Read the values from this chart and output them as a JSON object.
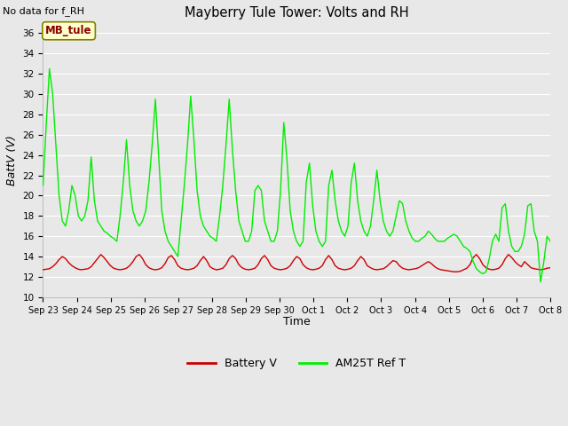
{
  "title": "Mayberry Tule Tower: Volts and RH",
  "no_data_label": "No data for f_RH",
  "ylabel": "BattV (V)",
  "xlabel": "Time",
  "legend_label_box": "MB_tule",
  "ylim": [
    10,
    37
  ],
  "yticks": [
    10,
    12,
    14,
    16,
    18,
    20,
    22,
    24,
    26,
    28,
    30,
    32,
    34,
    36
  ],
  "x_tick_labels": [
    "Sep 23",
    "Sep 24",
    "Sep 25",
    "Sep 26",
    "Sep 27",
    "Sep 28",
    "Sep 29",
    "Sep 30",
    "Oct 1",
    "Oct 2",
    "Oct 3",
    "Oct 4",
    "Oct 5",
    "Oct 6",
    "Oct 7",
    "Oct 8"
  ],
  "bg_color": "#e8e8e8",
  "fig_bg_color": "#e8e8e8",
  "grid_color": "#ffffff",
  "line1_color": "#cc0000",
  "line2_color": "#00ee00",
  "legend_line1": "Battery V",
  "legend_line2": "AM25T Ref T",
  "battery_v": [
    12.7,
    12.75,
    12.8,
    13.0,
    13.3,
    13.7,
    14.0,
    13.8,
    13.4,
    13.1,
    12.9,
    12.75,
    12.7,
    12.75,
    12.8,
    13.0,
    13.4,
    13.8,
    14.2,
    13.9,
    13.5,
    13.1,
    12.85,
    12.75,
    12.7,
    12.75,
    12.85,
    13.1,
    13.5,
    14.0,
    14.2,
    13.8,
    13.2,
    12.9,
    12.75,
    12.7,
    12.75,
    12.9,
    13.3,
    13.9,
    14.1,
    13.7,
    13.1,
    12.85,
    12.75,
    12.7,
    12.75,
    12.85,
    13.1,
    13.6,
    14.0,
    13.6,
    13.0,
    12.8,
    12.7,
    12.75,
    12.85,
    13.2,
    13.8,
    14.1,
    13.8,
    13.2,
    12.9,
    12.75,
    12.7,
    12.75,
    12.85,
    13.2,
    13.8,
    14.1,
    13.7,
    13.1,
    12.85,
    12.75,
    12.7,
    12.75,
    12.85,
    13.1,
    13.6,
    14.0,
    13.8,
    13.2,
    12.9,
    12.75,
    12.7,
    12.75,
    12.85,
    13.1,
    13.7,
    14.1,
    13.7,
    13.1,
    12.85,
    12.75,
    12.7,
    12.75,
    12.85,
    13.1,
    13.6,
    14.0,
    13.7,
    13.1,
    12.9,
    12.75,
    12.7,
    12.75,
    12.8,
    13.0,
    13.3,
    13.6,
    13.5,
    13.1,
    12.85,
    12.75,
    12.7,
    12.75,
    12.8,
    12.9,
    13.1,
    13.3,
    13.5,
    13.3,
    13.0,
    12.8,
    12.7,
    12.65,
    12.6,
    12.55,
    12.5,
    12.5,
    12.55,
    12.7,
    12.85,
    13.2,
    13.9,
    14.2,
    13.8,
    13.2,
    12.9,
    12.75,
    12.7,
    12.75,
    12.85,
    13.2,
    13.8,
    14.2,
    13.9,
    13.5,
    13.2,
    13.0,
    13.5,
    13.2,
    12.9,
    12.8,
    12.75,
    12.7,
    12.75,
    12.85,
    12.9
  ],
  "am25t": [
    21.0,
    27.0,
    32.5,
    30.0,
    25.0,
    20.0,
    17.5,
    17.0,
    18.5,
    21.0,
    20.0,
    18.0,
    17.5,
    18.0,
    19.5,
    23.8,
    19.5,
    17.5,
    17.0,
    16.5,
    16.3,
    16.0,
    15.8,
    15.5,
    18.0,
    21.3,
    25.5,
    21.0,
    18.5,
    17.5,
    17.0,
    17.5,
    18.5,
    21.3,
    25.0,
    29.5,
    24.0,
    18.5,
    16.5,
    15.5,
    15.0,
    14.5,
    14.0,
    17.5,
    21.0,
    25.0,
    29.8,
    25.5,
    20.5,
    18.0,
    17.0,
    16.5,
    16.0,
    15.8,
    15.5,
    18.0,
    21.0,
    25.0,
    29.5,
    24.5,
    20.5,
    17.5,
    16.5,
    15.5,
    15.5,
    16.5,
    20.5,
    21.0,
    20.5,
    17.5,
    16.5,
    15.5,
    15.5,
    16.5,
    20.5,
    27.2,
    23.5,
    18.5,
    16.5,
    15.5,
    15.0,
    15.5,
    21.3,
    23.2,
    19.0,
    16.5,
    15.5,
    15.0,
    15.5,
    21.0,
    22.5,
    19.5,
    17.5,
    16.5,
    16.0,
    17.0,
    21.3,
    23.2,
    19.5,
    17.5,
    16.5,
    16.0,
    17.0,
    19.5,
    22.5,
    19.5,
    17.5,
    16.5,
    16.0,
    16.5,
    18.0,
    19.5,
    19.2,
    17.5,
    16.5,
    15.8,
    15.5,
    15.5,
    15.8,
    16.0,
    16.5,
    16.2,
    15.8,
    15.5,
    15.5,
    15.5,
    15.8,
    16.0,
    16.2,
    16.0,
    15.5,
    15.0,
    14.8,
    14.5,
    13.5,
    12.8,
    12.5,
    12.3,
    12.5,
    13.8,
    15.5,
    16.2,
    15.5,
    18.8,
    19.2,
    16.5,
    15.0,
    14.5,
    14.5,
    15.0,
    16.2,
    19.0,
    19.2,
    16.5,
    15.5,
    11.5,
    13.5,
    16.0,
    15.5
  ]
}
